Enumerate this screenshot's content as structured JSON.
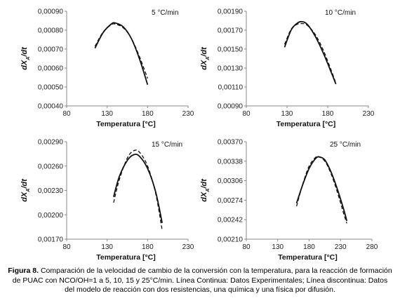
{
  "caption": {
    "label": "Figura 8.",
    "text": "Comparación de la velocidad de cambio de la conversión con la temperatura, para la reacción de formación de PUAC con NCO/OH=1 a 5, 10, 15 y 25°C/min. Línea Continua: Datos Experimentales; Línea discontinua: Datos del modelo de reacción con dos resistencias, una química y una física por difusión."
  },
  "chart_data": [
    {
      "type": "line",
      "title": "5 °C/min",
      "xlabel": "Temperatura [°C]",
      "ylabel": "dXA/dt",
      "xlim": [
        80,
        230
      ],
      "ylim": [
        0.0004,
        0.0009
      ],
      "xticks": [
        "80",
        "130",
        "180",
        "230"
      ],
      "yticks": [
        "0,00040",
        "0,00050",
        "0,00060",
        "0,00070",
        "0,00080",
        "0,00090"
      ],
      "grid": false,
      "series": [
        {
          "style": "solid",
          "x": [
            115,
            125,
            135,
            140,
            150,
            160,
            170,
            180
          ],
          "y": [
            0.000705,
            0.000787,
            0.000832,
            0.000838,
            0.000817,
            0.000755,
            0.000648,
            0.000512
          ]
        },
        {
          "style": "dashed",
          "x": [
            115,
            125,
            135,
            140,
            150,
            160,
            170,
            180
          ],
          "y": [
            0.000715,
            0.00079,
            0.000828,
            0.000832,
            0.000812,
            0.000756,
            0.00066,
            0.000545
          ]
        }
      ]
    },
    {
      "type": "line",
      "title": "10 °C/min",
      "xlabel": "Temperatura [°C]",
      "ylabel": "dXA/dt",
      "xlim": [
        80,
        230
      ],
      "ylim": [
        0.0009,
        0.0019
      ],
      "xticks": [
        "80",
        "130",
        "180",
        "230"
      ],
      "yticks": [
        "0,00090",
        "0,00110",
        "0,00130",
        "0,00150",
        "0,00170",
        "0,00190"
      ],
      "grid": false,
      "series": [
        {
          "style": "solid",
          "x": [
            127,
            135,
            142,
            148,
            155,
            165,
            175,
            185,
            190
          ],
          "y": [
            0.00152,
            0.0017,
            0.00177,
            0.00179,
            0.00176,
            0.00163,
            0.00145,
            0.00124,
            0.00113
          ]
        },
        {
          "style": "dashed",
          "x": [
            127,
            135,
            142,
            148,
            155,
            165,
            175,
            185,
            190
          ],
          "y": [
            0.00155,
            0.00171,
            0.00176,
            0.00177,
            0.00175,
            0.00165,
            0.00148,
            0.00126,
            0.00114
          ]
        }
      ]
    },
    {
      "type": "line",
      "title": "15 °C/min",
      "xlabel": "Temperatura [°C]",
      "ylabel": "dXA/dt",
      "xlim": [
        80,
        230
      ],
      "ylim": [
        0.0017,
        0.0029
      ],
      "xticks": [
        "80",
        "130",
        "180",
        "230"
      ],
      "yticks": [
        "0,00170",
        "0,00200",
        "0,00230",
        "0,00260",
        "0,00290"
      ],
      "grid": false,
      "series": [
        {
          "style": "solid",
          "x": [
            138,
            145,
            155,
            163,
            170,
            180,
            190,
            198
          ],
          "y": [
            0.00222,
            0.00247,
            0.00267,
            0.00274,
            0.00272,
            0.00257,
            0.00228,
            0.0019
          ]
        },
        {
          "style": "dashed",
          "x": [
            138,
            145,
            155,
            163,
            170,
            180,
            190,
            198
          ],
          "y": [
            0.00215,
            0.00243,
            0.0027,
            0.00279,
            0.00277,
            0.0026,
            0.00226,
            0.00181
          ]
        }
      ]
    },
    {
      "type": "line",
      "title": "25 °C/min",
      "xlabel": "Temperatura [°C]",
      "ylabel": "dXA/dt",
      "xlim": [
        80,
        280
      ],
      "ylim": [
        0.0021,
        0.0037
      ],
      "xticks": [
        "80",
        "130",
        "180",
        "230",
        "280"
      ],
      "yticks": [
        "0,00210",
        "0,00242",
        "0,00274",
        "0,00306",
        "0,00338",
        "0,00370"
      ],
      "grid": false,
      "series": [
        {
          "style": "solid",
          "x": [
            160,
            170,
            180,
            190,
            196,
            205,
            215,
            225,
            235,
            240
          ],
          "y": [
            0.00269,
            0.003,
            0.00326,
            0.00342,
            0.00345,
            0.0034,
            0.0032,
            0.00292,
            0.00259,
            0.0024
          ]
        },
        {
          "style": "dashed",
          "x": [
            160,
            170,
            180,
            190,
            194,
            205,
            215,
            225,
            235,
            240
          ],
          "y": [
            0.00264,
            0.00301,
            0.0033,
            0.00344,
            0.00346,
            0.00338,
            0.00317,
            0.00287,
            0.00252,
            0.00236
          ]
        }
      ]
    }
  ]
}
